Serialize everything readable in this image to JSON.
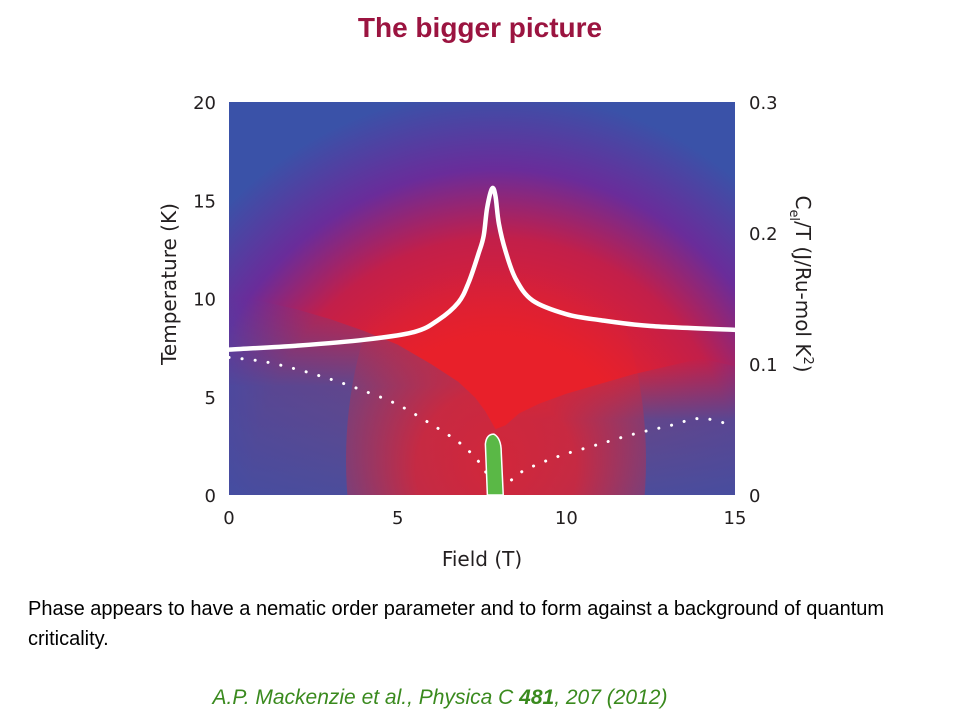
{
  "slide": {
    "title": "The bigger picture",
    "body": "Phase appears to have a nematic order parameter and to form against a background of quantum criticality.",
    "citation": {
      "prefix": "A.P. Mackenzie et al., Physica C ",
      "volume": "481",
      "suffix": ", 207 (2012)"
    }
  },
  "colors": {
    "title": "#9b1440",
    "citation": "#3a8a1e",
    "map_high": "#e8202a",
    "map_low": "#3a52a8",
    "map_mid": "#6a2c9a",
    "nematic_phase": "#5ab846",
    "curves": "#ffffff"
  },
  "chart_data": {
    "type": "heatmap",
    "title": "",
    "xlabel": "Field (T)",
    "ylabel": "Temperature (K)",
    "y2label": "C_el/T (J/Ru-mol K²)",
    "y2label_parts": {
      "c": "C",
      "sub": "el",
      "rest": "/T (J/Ru-mol K",
      "sup": "2",
      "close": ")"
    },
    "xlim": [
      0,
      15
    ],
    "ylim": [
      0,
      20
    ],
    "y2lim": [
      0,
      0.3
    ],
    "x_ticks": [
      "0",
      "5",
      "10",
      "15"
    ],
    "x_tick_values": [
      0,
      5,
      10,
      15
    ],
    "y_ticks": [
      "0",
      "5",
      "10",
      "15",
      "20"
    ],
    "y_tick_values": [
      0,
      5,
      10,
      15,
      20
    ],
    "y2_ticks": [
      "0",
      "0.1",
      "0.2",
      "0.3"
    ],
    "y2_tick_values": [
      0,
      0.1,
      0.2,
      0.3
    ],
    "critical_field": 7.9,
    "heat_capacity_curve": {
      "name": "solid white line",
      "x": [
        0,
        2,
        4,
        5.5,
        6.2,
        6.8,
        7.1,
        7.4,
        7.55,
        7.65,
        7.8,
        7.9,
        8.0,
        8.2,
        8.5,
        9.0,
        10,
        11,
        12.5,
        15
      ],
      "y": [
        7.4,
        7.6,
        7.9,
        8.3,
        8.9,
        9.8,
        10.8,
        12.3,
        13.2,
        14.6,
        15.6,
        15.2,
        13.8,
        12.4,
        11.0,
        9.9,
        9.2,
        8.9,
        8.6,
        8.4
      ]
    },
    "phase_boundary_curve": {
      "name": "dotted white line",
      "x": [
        0,
        1,
        2,
        3,
        4,
        5,
        6,
        6.8,
        7.3,
        7.6,
        7.9,
        8.2,
        8.6,
        9.2,
        10,
        11,
        12,
        13,
        14,
        15
      ],
      "y": [
        7.0,
        6.8,
        6.4,
        5.9,
        5.3,
        4.6,
        3.6,
        2.7,
        1.9,
        1.2,
        0.3,
        0.5,
        1.1,
        1.6,
        2.1,
        2.6,
        3.1,
        3.5,
        3.9,
        3.5
      ]
    },
    "nematic_region": {
      "name": "green phase",
      "x_min": 7.6,
      "x_max": 8.1,
      "t_max": 3.1
    },
    "grid": false,
    "legend": "none"
  }
}
